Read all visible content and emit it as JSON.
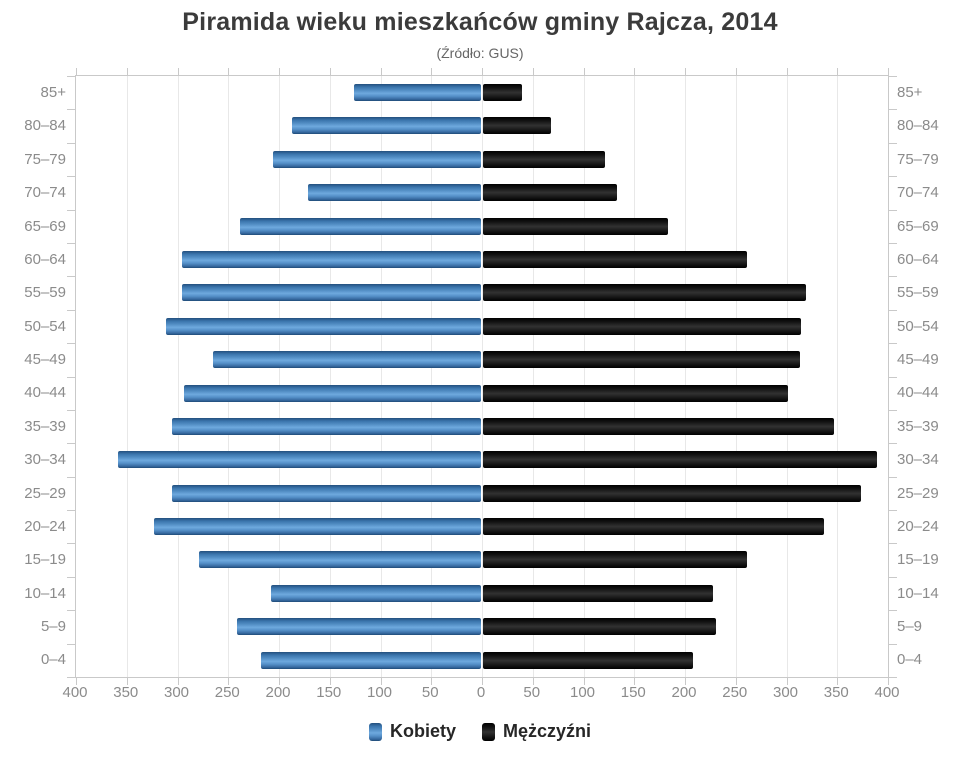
{
  "title": "Piramida wieku mieszkańców gminy Rajcza, 2014",
  "subtitle": "(Źródło: GUS)",
  "legend": {
    "women": "Kobiety",
    "men": "Mężczyźni"
  },
  "colors": {
    "women_bar": "#4a86c0",
    "men_bar": "#111111",
    "grid": "#e8e8e8",
    "axis": "#c9c9c9",
    "axis_label": "#8b8b8b",
    "title_text": "#3b3b3b"
  },
  "chart_data": {
    "type": "bar",
    "variant": "population-pyramid",
    "title": "Piramida wieku mieszkańców gminy Rajcza, 2014",
    "subtitle": "(Źródło: GUS)",
    "categories": [
      "85+",
      "80–84",
      "75–79",
      "70–74",
      "65–69",
      "60–64",
      "55–59",
      "50–54",
      "45–49",
      "40–44",
      "35–39",
      "30–34",
      "25–29",
      "20–24",
      "15–19",
      "10–14",
      "5–9",
      "0–4"
    ],
    "series": [
      {
        "name": "Kobiety",
        "side": "left",
        "color": "#4a86c0",
        "values": [
          125,
          186,
          205,
          170,
          237,
          295,
          295,
          310,
          264,
          293,
          304,
          358,
          304,
          322,
          278,
          207,
          240,
          217
        ]
      },
      {
        "name": "Mężczyźni",
        "side": "right",
        "color": "#111111",
        "values": [
          38,
          67,
          120,
          132,
          182,
          260,
          318,
          313,
          312,
          300,
          346,
          388,
          372,
          336,
          260,
          227,
          230,
          207
        ]
      }
    ],
    "axis_max": 400,
    "x_tick_labels": [
      "400",
      "350",
      "300",
      "250",
      "200",
      "150",
      "100",
      "50",
      "0",
      "50",
      "100",
      "150",
      "200",
      "250",
      "300",
      "350",
      "400"
    ],
    "grid": true,
    "legend_position": "bottom"
  }
}
